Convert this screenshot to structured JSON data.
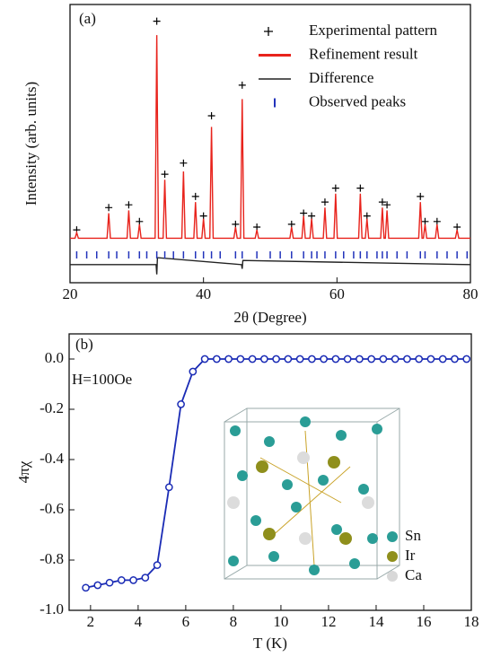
{
  "chart_data": [
    {
      "type": "line",
      "label": "(a)",
      "xlabel": "2θ (Degree)",
      "ylabel": "Intensity (arb. units)",
      "xlim": [
        20,
        80
      ],
      "xticks": [
        20,
        40,
        60,
        80
      ],
      "ylim": [
        0,
        100
      ],
      "series": [
        {
          "name": "Experimental pattern",
          "style": "marker",
          "color": "#000000",
          "x": [
            21,
            25.8,
            28.8,
            30.4,
            33,
            34.2,
            37,
            38.8,
            40,
            41.2,
            44.8,
            45.8,
            48,
            53.2,
            55,
            56.2,
            58.2,
            59.8,
            63.5,
            64.5,
            66.8,
            67.5,
            72.5,
            73.2,
            75,
            78
          ],
          "values": [
            19,
            27,
            28,
            22,
            94,
            39,
            43,
            31,
            24,
            60,
            21,
            71,
            20,
            21,
            25,
            24,
            29,
            34,
            34,
            24,
            29,
            28,
            31,
            22,
            22,
            20
          ]
        },
        {
          "name": "Refinement result",
          "style": "line",
          "color": "#e8231c",
          "x": [
            20,
            20.75,
            21,
            21.25,
            25.55,
            25.8,
            26.05,
            28.55,
            28.8,
            29.05,
            30.15,
            30.4,
            30.65,
            32.75,
            33,
            33.25,
            33.95,
            34.2,
            34.45,
            36.75,
            37,
            37.25,
            38.55,
            38.8,
            39.05,
            39.75,
            40,
            40.25,
            40.95,
            41.2,
            41.45,
            44.55,
            44.8,
            45.05,
            45.55,
            45.8,
            46.05,
            47.75,
            48,
            48.25,
            52.95,
            53.2,
            53.45,
            54.75,
            55,
            55.25,
            55.95,
            56.2,
            56.45,
            57.95,
            58.2,
            58.45,
            59.55,
            59.8,
            60.05,
            63.25,
            63.5,
            63.75,
            64.25,
            64.5,
            64.75,
            66.55,
            66.8,
            67.05,
            67.25,
            67.5,
            67.75,
            72.25,
            72.5,
            72.75,
            72.95,
            73.2,
            73.45,
            74.75,
            75,
            75.25,
            77.75,
            78,
            78.25,
            80
          ],
          "values": [
            16,
            16,
            18,
            16,
            16,
            25,
            16,
            16,
            26,
            16,
            16,
            21,
            16,
            16,
            89,
            16,
            16,
            37,
            16,
            16,
            40,
            16,
            16,
            29,
            16,
            16,
            23,
            16,
            16,
            56,
            16,
            16,
            20,
            16,
            16,
            66,
            16,
            16,
            19,
            16,
            16,
            20,
            16,
            16,
            24,
            16,
            16,
            23,
            16,
            16,
            27,
            16,
            16,
            32,
            16,
            16,
            32,
            16,
            16,
            23,
            16,
            16,
            27,
            16,
            16,
            26,
            16,
            16,
            29,
            16,
            16,
            21,
            16,
            16,
            21,
            16,
            16,
            19,
            16,
            16
          ]
        },
        {
          "name": "Difference",
          "style": "line",
          "color": "#222222",
          "x": [
            20,
            32.9,
            33,
            33.1,
            45.7,
            45.8,
            45.9,
            80
          ],
          "values": [
            6.5,
            6.5,
            3,
            9,
            6.5,
            5,
            8,
            6.5
          ]
        },
        {
          "name": "Observed peaks",
          "style": "tick",
          "color": "#2233bb",
          "x": [
            21,
            22.5,
            24,
            25.8,
            27,
            28.8,
            30.4,
            31.5,
            33,
            34.2,
            35.5,
            37,
            38.8,
            40,
            41.2,
            42.5,
            44.8,
            45.8,
            48,
            50,
            51.5,
            53.2,
            55,
            56.2,
            57,
            58.2,
            59.8,
            61,
            62.5,
            63.5,
            64.5,
            66,
            66.8,
            67.5,
            69,
            70.5,
            72.5,
            73.2,
            75,
            76.5,
            78,
            79.5
          ]
        }
      ]
    },
    {
      "type": "line",
      "label": "(b)",
      "annotation": "H=100Oe",
      "xlabel": "T (K)",
      "ylabel": "4πχ",
      "xlim": [
        1.1,
        18
      ],
      "xticks": [
        2,
        4,
        6,
        8,
        10,
        12,
        14,
        16,
        18
      ],
      "ylim": [
        -1.0,
        0.1
      ],
      "yticks": [
        {
          "value": 0,
          "label": "0.0"
        },
        -0.2,
        -0.4,
        -0.6,
        -0.8,
        {
          "value": -1,
          "label": "-1.0"
        }
      ],
      "series": [
        {
          "style": "line-marker",
          "color": "#1a2bb5",
          "x": [
            1.8,
            2.3,
            2.8,
            3.3,
            3.8,
            4.3,
            4.8,
            5.3,
            5.8,
            6.3,
            6.8,
            7.3,
            7.8,
            8.3,
            8.8,
            9.3,
            9.8,
            10.3,
            10.8,
            11.3,
            11.8,
            12.3,
            12.8,
            13.3,
            13.8,
            14.3,
            14.8,
            15.3,
            15.8,
            16.3,
            16.8,
            17.3,
            17.8
          ],
          "values": [
            -0.91,
            -0.9,
            -0.89,
            -0.88,
            -0.88,
            -0.87,
            -0.82,
            -0.51,
            -0.18,
            -0.05,
            0,
            0,
            0,
            0,
            0,
            0,
            0,
            0,
            0,
            0,
            0,
            0,
            0,
            0,
            0,
            0,
            0,
            0,
            0,
            0,
            0,
            0,
            0
          ]
        }
      ],
      "inset_legend": [
        {
          "label": "Sn",
          "color": "#2a9d96"
        },
        {
          "label": "Ir",
          "color": "#8f8f1c"
        },
        {
          "label": "Ca",
          "color": "#d8d8d8"
        }
      ]
    }
  ]
}
